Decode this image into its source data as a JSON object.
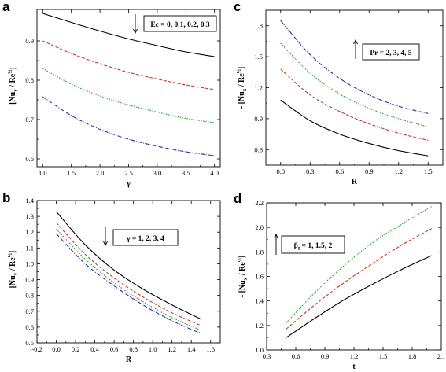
{
  "chart_data": [
    {
      "type": "line",
      "panel": "a",
      "xlabel": "γ",
      "ylabel": "- [Nu",
      "ylabel_sub": "x",
      "ylabel_mid": " / Re",
      "ylabel_sup": "½",
      "ylabel_end": "]",
      "xlim": [
        0.9,
        4.1
      ],
      "ylim": [
        0.58,
        0.98
      ],
      "xticks": [
        1.0,
        1.5,
        2.0,
        2.5,
        3.0,
        3.5,
        4.0
      ],
      "xtick_labels": [
        "1.0",
        "1.5",
        "2.0",
        "2.5",
        "3.0",
        "3.5",
        "4.0"
      ],
      "yticks": [
        0.6,
        0.7,
        0.8,
        0.9
      ],
      "ytick_labels": [
        "0.6",
        "0.7",
        "0.8",
        "0.9"
      ],
      "annotation": "Ec = 0, 0.1, 0.2, 0.3",
      "arrow": "down",
      "series": [
        {
          "color": "#000000",
          "dash": "",
          "x": [
            1.0,
            1.5,
            2.0,
            2.5,
            3.0,
            3.5,
            4.0
          ],
          "y": [
            0.97,
            0.947,
            0.925,
            0.905,
            0.888,
            0.872,
            0.86
          ]
        },
        {
          "color": "#c0392b",
          "dash": "4,2",
          "x": [
            1.0,
            1.5,
            2.0,
            2.5,
            3.0,
            3.5,
            4.0
          ],
          "y": [
            0.9,
            0.868,
            0.842,
            0.82,
            0.803,
            0.788,
            0.776
          ]
        },
        {
          "color": "#22a022",
          "dash": "1.5,1.5",
          "x": [
            1.0,
            1.5,
            2.0,
            2.5,
            3.0,
            3.5,
            4.0
          ],
          "y": [
            0.83,
            0.79,
            0.76,
            0.737,
            0.719,
            0.703,
            0.692
          ]
        },
        {
          "color": "#2c2c9a",
          "dash": "5,1.5,1,1.5",
          "x": [
            1.0,
            1.5,
            2.0,
            2.5,
            3.0,
            3.5,
            4.0
          ],
          "y": [
            0.758,
            0.71,
            0.675,
            0.65,
            0.632,
            0.618,
            0.608
          ]
        }
      ]
    },
    {
      "type": "line",
      "panel": "c",
      "xlabel": "R",
      "ylabel": "- [Nu",
      "ylabel_sub": "x",
      "ylabel_mid": " / Re",
      "ylabel_sup": "½",
      "ylabel_end": "]",
      "xlim": [
        -0.15,
        1.65
      ],
      "ylim": [
        0.45,
        1.95
      ],
      "xticks": [
        0.0,
        0.3,
        0.6,
        0.9,
        1.2,
        1.5
      ],
      "xtick_labels": [
        "0.0",
        "0.3",
        "0.6",
        "0.9",
        "1.2",
        "1.5"
      ],
      "yticks": [
        0.6,
        0.9,
        1.2,
        1.5,
        1.8
      ],
      "ytick_labels": [
        "0.6",
        "0.9",
        "1.2",
        "1.5",
        "1.8"
      ],
      "annotation": "Pr = 2, 3, 4, 5",
      "arrow": "up",
      "series": [
        {
          "color": "#000000",
          "dash": "",
          "x": [
            0.0,
            0.3,
            0.6,
            0.9,
            1.2,
            1.5
          ],
          "y": [
            1.08,
            0.88,
            0.75,
            0.66,
            0.59,
            0.54
          ]
        },
        {
          "color": "#c0392b",
          "dash": "4,2",
          "x": [
            0.0,
            0.3,
            0.6,
            0.9,
            1.2,
            1.5
          ],
          "y": [
            1.38,
            1.13,
            0.97,
            0.85,
            0.76,
            0.69
          ]
        },
        {
          "color": "#22a022",
          "dash": "1.5,1.5",
          "x": [
            0.0,
            0.3,
            0.6,
            0.9,
            1.2,
            1.5
          ],
          "y": [
            1.63,
            1.34,
            1.14,
            1.0,
            0.9,
            0.82
          ]
        },
        {
          "color": "#2c2c9a",
          "dash": "5,1.5,1,1.5",
          "x": [
            0.0,
            0.3,
            0.6,
            0.9,
            1.2,
            1.5
          ],
          "y": [
            1.85,
            1.52,
            1.29,
            1.13,
            1.02,
            0.95
          ]
        }
      ]
    },
    {
      "type": "line",
      "panel": "b",
      "xlabel": "R",
      "ylabel": "- [Nu",
      "ylabel_sub": "x",
      "ylabel_mid": " / Re",
      "ylabel_sup": "½",
      "ylabel_end": "]",
      "xlim": [
        -0.2,
        1.7
      ],
      "ylim": [
        0.5,
        1.4
      ],
      "xticks": [
        -0.2,
        0.0,
        0.2,
        0.4,
        0.6,
        0.8,
        1.0,
        1.2,
        1.4,
        1.6
      ],
      "xtick_labels": [
        "-0.2",
        "0.0",
        "0.2",
        "0.4",
        "0.6",
        "0.8",
        "1.0",
        "1.2",
        "1.4",
        "1.6"
      ],
      "yticks": [
        0.5,
        0.6,
        0.7,
        0.8,
        0.9,
        1.0,
        1.1,
        1.2,
        1.3,
        1.4
      ],
      "ytick_labels": [
        "0.5",
        "0.6",
        "0.7",
        "0.8",
        "0.9",
        "1.0",
        "1.1",
        "1.2",
        "1.3",
        "1.4"
      ],
      "annotation": "γ = 1, 2, 3, 4",
      "arrow": "down",
      "series": [
        {
          "color": "#000000",
          "dash": "",
          "x": [
            0.0,
            0.3,
            0.6,
            0.9,
            1.2,
            1.5
          ],
          "y": [
            1.33,
            1.12,
            0.96,
            0.84,
            0.74,
            0.65
          ]
        },
        {
          "color": "#c0392b",
          "dash": "4,2",
          "x": [
            0.0,
            0.3,
            0.6,
            0.9,
            1.2,
            1.5
          ],
          "y": [
            1.26,
            1.06,
            0.91,
            0.79,
            0.69,
            0.61
          ]
        },
        {
          "color": "#22a022",
          "dash": "1.5,1.5",
          "x": [
            0.0,
            0.3,
            0.6,
            0.9,
            1.2,
            1.5
          ],
          "y": [
            1.22,
            1.03,
            0.88,
            0.76,
            0.66,
            0.58
          ]
        },
        {
          "color": "#2c2c9a",
          "dash": "5,1.5,1,1.5",
          "x": [
            0.0,
            0.3,
            0.6,
            0.9,
            1.2,
            1.5
          ],
          "y": [
            1.19,
            1.0,
            0.86,
            0.74,
            0.64,
            0.56
          ]
        }
      ]
    },
    {
      "type": "line",
      "panel": "d",
      "xlabel": "t",
      "ylabel": "- [Nu",
      "ylabel_sub": "x",
      "ylabel_mid": " / Re",
      "ylabel_sup": "½",
      "ylabel_end": "]",
      "xlim": [
        0.3,
        2.1
      ],
      "ylim": [
        1.0,
        2.2
      ],
      "xticks": [
        0.3,
        0.6,
        0.9,
        1.2,
        1.5,
        1.8,
        2.1
      ],
      "xtick_labels": [
        "0.3",
        "0.6",
        "0.9",
        "1.2",
        "1.5",
        "1.8",
        "2.1"
      ],
      "yticks": [
        1.0,
        1.2,
        1.4,
        1.6,
        1.8,
        2.0,
        2.2
      ],
      "ytick_labels": [
        "1.0",
        "1.2",
        "1.4",
        "1.6",
        "1.8",
        "2.0",
        "2.2"
      ],
      "annotation_main": "β",
      "annotation_sub": "t",
      "annotation_rest": " = 1, 1.5, 2",
      "arrow": "up",
      "series": [
        {
          "color": "#000000",
          "dash": "",
          "x": [
            0.5,
            0.8,
            1.1,
            1.4,
            1.7,
            2.0
          ],
          "y": [
            1.1,
            1.26,
            1.41,
            1.54,
            1.66,
            1.77
          ]
        },
        {
          "color": "#c0392b",
          "dash": "4,2",
          "x": [
            0.5,
            0.8,
            1.1,
            1.4,
            1.7,
            2.0
          ],
          "y": [
            1.17,
            1.37,
            1.55,
            1.71,
            1.86,
            1.99
          ]
        },
        {
          "color": "#22a022",
          "dash": "1.5,1.5",
          "x": [
            0.5,
            0.8,
            1.1,
            1.4,
            1.7,
            2.0
          ],
          "y": [
            1.22,
            1.47,
            1.69,
            1.88,
            2.03,
            2.17
          ]
        }
      ]
    }
  ]
}
